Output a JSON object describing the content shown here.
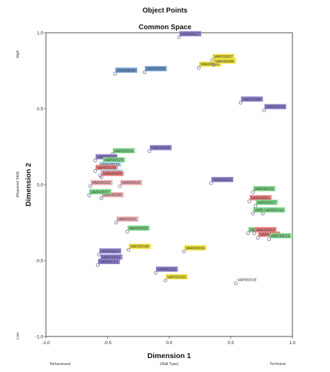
{
  "chart_data": {
    "type": "scatter",
    "title": "Object Points",
    "subtitle": "Common Space",
    "xlabel": "Dimension 1",
    "xlabel_sub": "(Skill Type)",
    "ylabel": "Dimension 2",
    "ylabel_sub": "(Required Skill)",
    "x_low_label": "Behavioural",
    "x_high_label": "Technical",
    "y_high_label": "High",
    "y_low_label": "Low",
    "xlim": [
      -1.0,
      1.0
    ],
    "ylim": [
      -1.0,
      1.0
    ],
    "xticks": [
      "-1.0",
      "-0.5",
      "0.0",
      "0.5",
      "1.0"
    ],
    "yticks": [
      "1.0",
      "0.5",
      "0.0",
      "-0.5",
      "-1.0"
    ],
    "grid": false,
    "colors": {
      "purple": "#8f7fd0",
      "blue": "#6f9fd6",
      "yellow": "#f0e23a",
      "green": "#7fd98a",
      "red": "#f08080",
      "pink": "#f0b0b4",
      "lightblue": "#a8dcee"
    },
    "points": [
      {
        "label": "VAR00017",
        "x": 0.08,
        "y": 0.97,
        "color": "purple"
      },
      {
        "label": "VAR00007",
        "x": 0.35,
        "y": 0.82,
        "color": "yellow"
      },
      {
        "label": "VAR00034",
        "x": -0.44,
        "y": 0.73,
        "color": "blue"
      },
      {
        "label": "VAR00026",
        "x": -0.2,
        "y": 0.74,
        "color": "blue"
      },
      {
        "label": "VAR00035",
        "x": 0.24,
        "y": 0.77,
        "color": "yellow"
      },
      {
        "label": "VAR00006",
        "x": 0.36,
        "y": 0.79,
        "color": "yellow"
      },
      {
        "label": "VAR00009",
        "x": 0.58,
        "y": 0.54,
        "color": "purple"
      },
      {
        "label": "VAR00019",
        "x": 0.77,
        "y": 0.49,
        "color": "purple"
      },
      {
        "label": "VAR00024",
        "x": -0.46,
        "y": 0.2,
        "color": "green"
      },
      {
        "label": "VAR00008",
        "x": -0.16,
        "y": 0.22,
        "color": "purple"
      },
      {
        "label": "VAR00010",
        "x": -0.6,
        "y": 0.16,
        "color": "purple"
      },
      {
        "label": "VAR00023",
        "x": -0.54,
        "y": 0.14,
        "color": "green"
      },
      {
        "label": "VAR00039",
        "x": -0.57,
        "y": 0.11,
        "color": "lightblue"
      },
      {
        "label": "VAR00028",
        "x": -0.6,
        "y": 0.09,
        "color": "red"
      },
      {
        "label": "VAR00036",
        "x": -0.56,
        "y": 0.06,
        "color": "lightblue"
      },
      {
        "label": "VAR00029",
        "x": -0.55,
        "y": 0.05,
        "color": "red"
      },
      {
        "label": "VAR00015",
        "x": 0.34,
        "y": 0.01,
        "color": "purple"
      },
      {
        "label": "VAR00022",
        "x": -0.64,
        "y": -0.01,
        "color": "pink"
      },
      {
        "label": "VAR00032",
        "x": -0.4,
        "y": -0.01,
        "color": "pink"
      },
      {
        "label": "VAR00016",
        "x": 0.68,
        "y": -0.05,
        "color": "green"
      },
      {
        "label": "VAR00030",
        "x": -0.55,
        "y": -0.09,
        "color": "pink"
      },
      {
        "label": "VAR00027",
        "x": -0.65,
        "y": -0.07,
        "color": "green"
      },
      {
        "label": "VAR00001",
        "x": 0.65,
        "y": -0.11,
        "color": "red"
      },
      {
        "label": "VAR00037",
        "x": 0.7,
        "y": -0.14,
        "color": "green"
      },
      {
        "label": "VAR00004",
        "x": 0.68,
        "y": -0.19,
        "color": "green"
      },
      {
        "label": "VAR00014",
        "x": 0.76,
        "y": -0.19,
        "color": "green"
      },
      {
        "label": "VAR00031",
        "x": -0.43,
        "y": -0.25,
        "color": "pink"
      },
      {
        "label": "VAR00025",
        "x": -0.34,
        "y": -0.31,
        "color": "green"
      },
      {
        "label": "VAR00005",
        "x": 0.64,
        "y": -0.32,
        "color": "green"
      },
      {
        "label": "VAR00002",
        "x": 0.72,
        "y": -0.35,
        "color": "red"
      },
      {
        "label": "VAR00003",
        "x": 0.69,
        "y": -0.32,
        "color": "red"
      },
      {
        "label": "VAR00013",
        "x": 0.81,
        "y": -0.36,
        "color": "green"
      },
      {
        "label": "VAR00040",
        "x": -0.33,
        "y": -0.43,
        "color": "yellow"
      },
      {
        "label": "VAR00036",
        "x": 0.12,
        "y": -0.44,
        "color": "yellow"
      },
      {
        "label": "VAR00020",
        "x": -0.57,
        "y": -0.46,
        "color": "purple"
      },
      {
        "label": "VAR00021",
        "x": -0.58,
        "y": -0.53,
        "color": "purple"
      },
      {
        "label": "VAR00011",
        "x": -0.56,
        "y": -0.5,
        "color": "purple"
      },
      {
        "label": "VAR00012",
        "x": -0.11,
        "y": -0.58,
        "color": "purple"
      },
      {
        "label": "VAR00033",
        "x": -0.03,
        "y": -0.63,
        "color": "yellow"
      },
      {
        "label": "VAR00018",
        "x": 0.54,
        "y": -0.65,
        "color": "none"
      }
    ]
  }
}
